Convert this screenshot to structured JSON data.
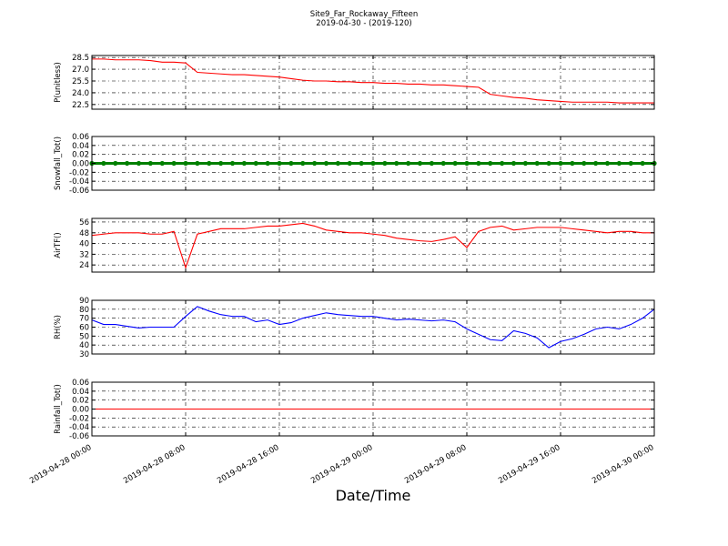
{
  "title": "Site9_Far_Rockaway_Fifteen",
  "subtitle": "2019-04-30 - (2019-120)",
  "xlabel": "Date/Time",
  "x": [
    "2019-04-28 00:00",
    "2019-04-28 01:00",
    "2019-04-28 02:00",
    "2019-04-28 03:00",
    "2019-04-28 04:00",
    "2019-04-28 05:00",
    "2019-04-28 06:00",
    "2019-04-28 07:00",
    "2019-04-28 08:00",
    "2019-04-28 09:00",
    "2019-04-28 10:00",
    "2019-04-28 11:00",
    "2019-04-28 12:00",
    "2019-04-28 13:00",
    "2019-04-28 14:00",
    "2019-04-28 15:00",
    "2019-04-28 16:00",
    "2019-04-28 17:00",
    "2019-04-28 18:00",
    "2019-04-28 19:00",
    "2019-04-28 20:00",
    "2019-04-28 21:00",
    "2019-04-28 22:00",
    "2019-04-28 23:00",
    "2019-04-29 00:00",
    "2019-04-29 01:00",
    "2019-04-29 02:00",
    "2019-04-29 03:00",
    "2019-04-29 04:00",
    "2019-04-29 05:00",
    "2019-04-29 06:00",
    "2019-04-29 07:00",
    "2019-04-29 08:00",
    "2019-04-29 09:00",
    "2019-04-29 10:00",
    "2019-04-29 11:00",
    "2019-04-29 12:00",
    "2019-04-29 13:00",
    "2019-04-29 14:00",
    "2019-04-29 15:00",
    "2019-04-29 16:00",
    "2019-04-29 17:00",
    "2019-04-29 18:00",
    "2019-04-29 19:00",
    "2019-04-29 20:00",
    "2019-04-29 21:00",
    "2019-04-29 22:00",
    "2019-04-29 23:00",
    "2019-04-30 00:00"
  ],
  "xlim": [
    "2019-04-28 00:00",
    "2019-04-30 00:00"
  ],
  "xticks": [
    "2019-04-28 00:00",
    "2019-04-28 08:00",
    "2019-04-28 16:00",
    "2019-04-29 00:00",
    "2019-04-29 08:00",
    "2019-04-29 16:00",
    "2019-04-30 00:00"
  ],
  "grid": true,
  "chart_data": [
    {
      "type": "line",
      "ylabel": "P(unitless)",
      "color": "#ff0000",
      "marker": false,
      "values": [
        28.3,
        28.3,
        28.2,
        28.2,
        28.2,
        28.1,
        27.9,
        27.9,
        27.8,
        26.6,
        26.5,
        26.4,
        26.3,
        26.3,
        26.2,
        26.1,
        26.0,
        25.8,
        25.6,
        25.5,
        25.5,
        25.4,
        25.4,
        25.3,
        25.3,
        25.2,
        25.2,
        25.1,
        25.1,
        25.0,
        25.0,
        24.9,
        24.8,
        24.7,
        23.8,
        23.6,
        23.4,
        23.3,
        23.1,
        23.0,
        22.9,
        22.8,
        22.8,
        22.8,
        22.8,
        22.7,
        22.7,
        22.7,
        22.7
      ],
      "ylim": [
        21.9,
        28.75
      ],
      "yticks": [
        22.5,
        {
          "value": 24,
          "label": "24.0"
        },
        25.5,
        {
          "value": 27,
          "label": "27.0"
        },
        28.5
      ]
    },
    {
      "type": "line",
      "ylabel": "Snowfall_Tot()",
      "color": "#008000",
      "marker": true,
      "values": [
        0,
        0,
        0,
        0,
        0,
        0,
        0,
        0,
        0,
        0,
        0,
        0,
        0,
        0,
        0,
        0,
        0,
        0,
        0,
        0,
        0,
        0,
        0,
        0,
        0,
        0,
        0,
        0,
        0,
        0,
        0,
        0,
        0,
        0,
        0,
        0,
        0,
        0,
        0,
        0,
        0,
        0,
        0,
        0,
        0,
        0,
        0,
        0,
        0
      ],
      "ylim": [
        -0.06,
        0.06
      ],
      "yticks": [
        -0.06,
        -0.04,
        -0.02,
        {
          "value": 0,
          "label": "0.00"
        },
        0.02,
        0.04,
        0.06
      ]
    },
    {
      "type": "line",
      "ylabel": "AirTF()",
      "color": "#ff0000",
      "marker": false,
      "values": [
        46,
        47,
        48,
        48,
        48,
        47,
        47,
        49,
        22,
        47,
        49,
        51,
        51,
        51,
        52,
        53,
        53,
        54,
        55,
        53,
        50,
        49,
        48,
        48,
        47,
        46,
        44,
        43,
        42,
        41.5,
        43,
        45,
        37,
        49,
        52,
        53,
        50,
        51,
        52,
        52,
        52,
        51,
        50,
        49,
        48,
        49,
        49,
        48,
        48
      ],
      "ylim": [
        18.7,
        58.7
      ],
      "yticks": [
        24,
        32,
        40,
        48,
        56
      ]
    },
    {
      "type": "line",
      "ylabel": "RH(%)",
      "color": "#0000ff",
      "marker": false,
      "values": [
        68,
        63,
        63,
        61,
        59,
        60,
        60,
        60,
        72,
        83,
        78,
        74,
        72,
        72,
        66,
        68,
        63,
        65,
        70,
        73,
        76,
        74,
        73,
        72,
        72,
        70,
        68,
        69,
        68,
        67,
        68,
        66,
        58,
        52,
        46,
        45,
        56,
        53,
        48,
        37,
        44,
        47,
        52,
        58,
        60,
        58,
        63,
        70,
        80
      ],
      "ylim": [
        30,
        90
      ],
      "yticks": [
        30,
        40,
        50,
        60,
        70,
        80,
        90
      ]
    },
    {
      "type": "line",
      "ylabel": "Rainfall_Tot()",
      "color": "#ff0000",
      "marker": false,
      "values": [
        0,
        0,
        0,
        0,
        0,
        0,
        0,
        0,
        0,
        0,
        0,
        0,
        0,
        0,
        0,
        0,
        0,
        0,
        0,
        0,
        0,
        0,
        0,
        0,
        0,
        0,
        0,
        0,
        0,
        0,
        0,
        0,
        0,
        0,
        0,
        0,
        0,
        0,
        0,
        0,
        0,
        0,
        0,
        0,
        0,
        0,
        0,
        0,
        0
      ],
      "ylim": [
        -0.06,
        0.06
      ],
      "yticks": [
        -0.06,
        -0.04,
        -0.02,
        {
          "value": 0,
          "label": "0.00"
        },
        0.02,
        0.04,
        0.06
      ]
    }
  ]
}
